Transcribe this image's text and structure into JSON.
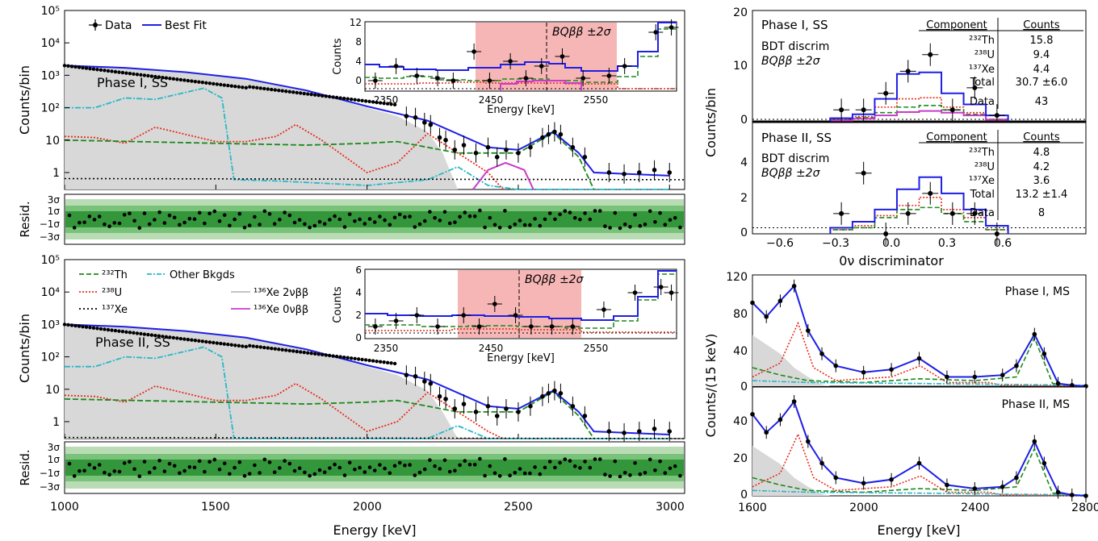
{
  "figure": {
    "main_xlabel": "Energy [keV]",
    "main_ylabel": "Counts/bin",
    "resid_ylabel": "Resid.",
    "bdt_ylabel": "Counts/bin",
    "bdt_xlabel": "0ν discriminator",
    "ms_ylabel": "Counts/(15 keV)",
    "ms_xlabel": "Energy [keV]",
    "inset_ylabel": "Counts",
    "inset_xlabel": "Energy [keV]",
    "inset_band_label": "BQββ ±2σ"
  },
  "colors": {
    "data": "#000000",
    "best_fit": "#1f1fe6",
    "th232": "#1b8a1b",
    "u238": "#e82a1a",
    "xe137": "#000000",
    "other": "#26b8c8",
    "two_nu": "#d8d8d8",
    "zero_nu": "#c83cc8",
    "band_light": "#b9dcb4",
    "band_mid": "#79c27a",
    "band_dark": "#34963a",
    "roi": "#f6b6b6"
  },
  "legend": {
    "data": "Data",
    "best_fit": "Best Fit",
    "th232": "²³²Th",
    "u238": "²³⁸U",
    "xe137": "¹³⁷Xe",
    "other": "Other Bkgds",
    "two_nu": "¹³⁶Xe 2νββ",
    "zero_nu": "¹³⁶Xe 0νββ"
  },
  "chart_data": [
    {
      "id": "main-phase1",
      "type": "line",
      "label": "Phase I, SS",
      "log_y": true,
      "xlim": [
        1000,
        3050
      ],
      "ylim": [
        0.3,
        100000
      ],
      "xticks": [
        1000,
        1500,
        2000,
        2500,
        3000
      ],
      "yticks": [
        "1",
        "10",
        "10²",
        "10³",
        "10⁴",
        "10⁵"
      ],
      "data": {
        "x": [
          1000,
          1200,
          1400,
          1600,
          1800,
          2000,
          2100,
          2200,
          2300,
          2400,
          2460,
          2500,
          2550,
          2615,
          2650,
          2700,
          2800,
          2900,
          3000
        ],
        "y": [
          2000,
          1700,
          1300,
          780,
          350,
          120,
          70,
          40,
          20,
          8,
          6,
          5,
          8,
          17,
          12,
          4,
          1,
          1,
          0.9
        ]
      },
      "best_fit": {
        "x": [
          1000,
          1200,
          1400,
          1600,
          1800,
          2000,
          2200,
          2400,
          2500,
          2615,
          2700,
          2750,
          3000
        ],
        "y": [
          2000,
          1700,
          1250,
          780,
          340,
          110,
          40,
          6,
          5,
          18,
          4,
          1,
          0.8
        ]
      },
      "th232": {
        "x": [
          1000,
          1500,
          1800,
          2000,
          2100,
          2300,
          2400,
          2500,
          2615,
          2700,
          2750
        ],
        "y": [
          10,
          8,
          7,
          8,
          9,
          4,
          4,
          4,
          17,
          3,
          0.3
        ]
      },
      "u238": {
        "x": [
          1000,
          1100,
          1200,
          1300,
          1400,
          1500,
          1600,
          1700,
          1764,
          1850,
          2000,
          2100,
          2200,
          2300,
          2400,
          2450
        ],
        "y": [
          13,
          12,
          8,
          25,
          15,
          9,
          9,
          13,
          30,
          10,
          1,
          2,
          16,
          4,
          1,
          0.3
        ]
      },
      "xe137": {
        "x": [
          1000,
          3050
        ],
        "y": [
          0.65,
          0.6
        ]
      },
      "other": {
        "x": [
          1000,
          1100,
          1200,
          1300,
          1460,
          1520,
          1560,
          1700,
          2000,
          2200,
          2300,
          2400,
          2500,
          3000
        ],
        "y": [
          100,
          100,
          200,
          180,
          400,
          200,
          0.6,
          0.55,
          0.4,
          0.6,
          1.5,
          0.4,
          0.3,
          0.2
        ]
      },
      "zero_nu": {
        "x": [
          2350,
          2400,
          2458,
          2520,
          2550
        ],
        "y": [
          0.3,
          1.2,
          2,
          1.2,
          0.3
        ]
      }
    },
    {
      "id": "inset-phase1",
      "type": "line",
      "xlim": [
        2300,
        2600
      ],
      "ylim": [
        0,
        14
      ],
      "xticks": [
        2350,
        2450,
        2550
      ],
      "yticks": [
        0,
        4,
        8,
        12
      ],
      "roi": [
        2333,
        2548
      ],
      "qbb": 2458
    },
    {
      "id": "main-phase2",
      "type": "line",
      "label": "Phase II, SS",
      "log_y": true,
      "xlim": [
        1000,
        3050
      ],
      "ylim": [
        0.3,
        100000
      ],
      "xticks": [
        1000,
        1500,
        2000,
        2500,
        3000
      ],
      "yticks": [
        "1",
        "10",
        "10²",
        "10³",
        "10⁴",
        "10⁵"
      ]
    },
    {
      "id": "inset-phase2",
      "type": "line",
      "xlim": [
        2300,
        2600
      ],
      "ylim": [
        0,
        6
      ],
      "xticks": [
        2350,
        2450,
        2550
      ],
      "yticks": [
        0,
        2,
        4,
        6
      ],
      "roi": [
        2380,
        2510
      ],
      "qbb": 2458
    },
    {
      "id": "resid",
      "type": "scatter",
      "yticks": [
        "3σ",
        "1σ",
        "−1σ",
        "−3σ"
      ]
    },
    {
      "id": "bdt-phase1",
      "type": "bar",
      "label": "Phase I, SS",
      "sublabel": "BDT discrim",
      "roi_label": "BQββ ±2σ",
      "xlim": [
        -0.75,
        0.75
      ],
      "ylim": [
        0,
        20
      ],
      "yticks": [
        0,
        10,
        20
      ],
      "data": {
        "x": [
          -0.35,
          -0.25,
          -0.15,
          -0.05,
          0.05,
          0.15,
          0.25,
          0.35
        ],
        "y": [
          2,
          2,
          5,
          9,
          12,
          2,
          6,
          1
        ]
      },
      "table": {
        "header": [
          "Component",
          "Counts"
        ],
        "rows": [
          [
            "²³²Th",
            "15.8"
          ],
          [
            "²³⁸U",
            "9.4"
          ],
          [
            "¹³⁷Xe",
            "4.4"
          ],
          [
            "Total",
            "30.7 ±6.0"
          ]
        ],
        "data_row": [
          "Data",
          "43"
        ]
      }
    },
    {
      "id": "bdt-phase2",
      "type": "bar",
      "label": "Phase II, SS",
      "sublabel": "BDT discrim",
      "roi_label": "BQββ ±2σ",
      "xlim": [
        -0.75,
        0.75
      ],
      "ylim": [
        0,
        5.5
      ],
      "yticks": [
        0,
        2,
        4
      ],
      "xticks": [
        "−0.6",
        "−0.3",
        "0.0",
        "0.3",
        "0.6"
      ],
      "data": {
        "x": [
          -0.35,
          -0.25,
          -0.15,
          -0.05,
          0.05,
          0.15,
          0.25,
          0.35
        ],
        "y": [
          1,
          3,
          0,
          1,
          2,
          1,
          1,
          0
        ]
      },
      "table": {
        "header": [
          "Component",
          "Counts"
        ],
        "rows": [
          [
            "²³²Th",
            "4.8"
          ],
          [
            "²³⁸U",
            "4.2"
          ],
          [
            "¹³⁷Xe",
            "3.6"
          ],
          [
            "Total",
            "13.2 ±1.4"
          ]
        ],
        "data_row": [
          "Data",
          "8"
        ]
      }
    },
    {
      "id": "ms-phase1",
      "type": "line",
      "label": "Phase I, MS",
      "xlim": [
        1600,
        2800
      ],
      "ylim": [
        0,
        120
      ],
      "yticks": [
        0,
        40,
        80,
        120
      ],
      "fit": {
        "x": [
          1600,
          1650,
          1700,
          1750,
          1800,
          1850,
          1900,
          2000,
          2100,
          2200,
          2300,
          2400,
          2500,
          2550,
          2615,
          2650,
          2700,
          2750,
          2800
        ],
        "y": [
          90,
          75,
          92,
          108,
          60,
          35,
          22,
          15,
          18,
          30,
          10,
          10,
          12,
          22,
          56,
          35,
          3,
          1,
          0
        ]
      }
    },
    {
      "id": "ms-phase2",
      "type": "line",
      "label": "Phase II, MS",
      "xlim": [
        1600,
        2800
      ],
      "ylim": [
        0,
        60
      ],
      "yticks": [
        0,
        20,
        40
      ],
      "xticks": [
        1600,
        2000,
        2400,
        2800
      ],
      "fit": {
        "x": [
          1600,
          1650,
          1700,
          1750,
          1800,
          1850,
          1900,
          2000,
          2100,
          2200,
          2300,
          2400,
          2500,
          2550,
          2615,
          2650,
          2700,
          2750,
          2800
        ],
        "y": [
          45,
          35,
          42,
          52,
          30,
          18,
          10,
          7,
          9,
          18,
          6,
          4,
          5,
          10,
          30,
          18,
          2,
          0.5,
          0
        ]
      }
    }
  ]
}
